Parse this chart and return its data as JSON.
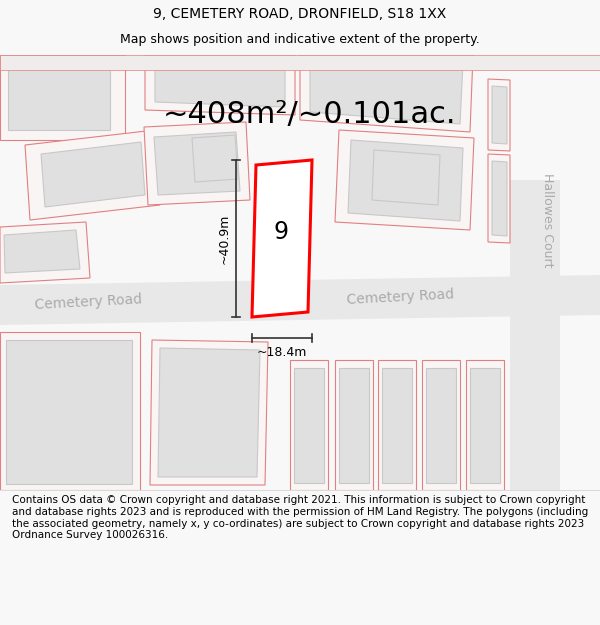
{
  "title_line1": "9, CEMETERY ROAD, DRONFIELD, S18 1XX",
  "title_line2": "Map shows position and indicative extent of the property.",
  "area_text": "~408m²/~0.101ac.",
  "property_number": "9",
  "dim_height": "~40.9m",
  "dim_width": "~18.4m",
  "road_label1": "Cemetery Road",
  "road_label3": "Hallowes Court",
  "copyright_text": "Contains OS data © Crown copyright and database right 2021. This information is subject to Crown copyright and database rights 2023 and is reproduced with the permission of HM Land Registry. The polygons (including the associated geometry, namely x, y co-ordinates) are subject to Crown copyright and database rights 2023 Ordnance Survey 100026316.",
  "bg_color": "#f8f8f8",
  "map_bg": "#ffffff",
  "building_stroke": "#e08080",
  "building_fill": "#ffffff",
  "highlight_stroke": "#ff0000",
  "highlight_fill": "#ffffff",
  "dim_color": "#333333",
  "road_text_color": "#aaaaaa",
  "title_fontsize": 10,
  "subtitle_fontsize": 9,
  "area_fontsize": 22,
  "copyright_fontsize": 7.5
}
